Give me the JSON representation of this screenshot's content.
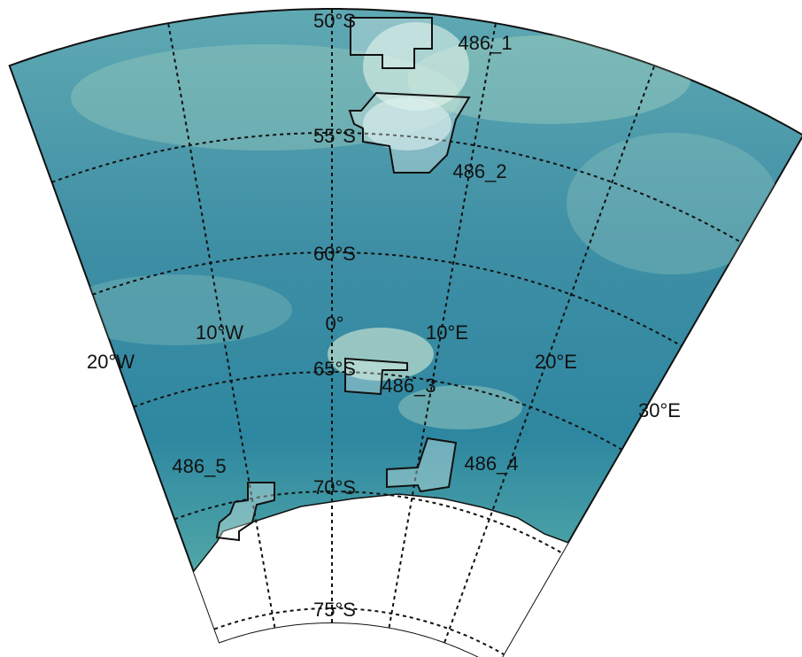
{
  "lat_labels": [
    "50°S",
    "55°S",
    "60°S",
    "65°S",
    "70°S",
    "75°S"
  ],
  "lon_labels": [
    "20°W",
    "10°W",
    "0°",
    "10°E",
    "20°E",
    "30°E"
  ],
  "regions": [
    {
      "label": "486_1"
    },
    {
      "label": "486_2"
    },
    {
      "label": "486_3"
    },
    {
      "label": "486_4"
    },
    {
      "label": "486_5"
    }
  ]
}
